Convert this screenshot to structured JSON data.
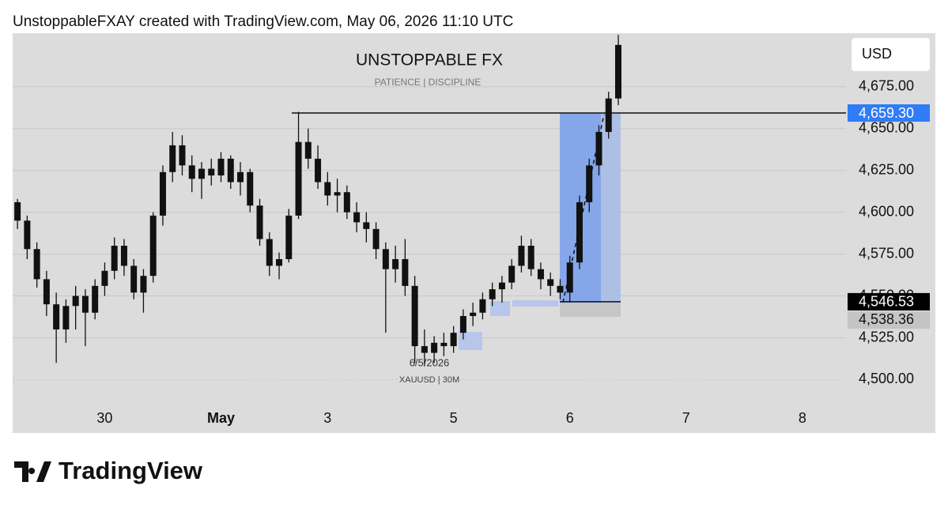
{
  "header": "UnstoppableFXAY created with TradingView.com, May 06, 2026 11:10 UTC",
  "logo": "TradingView",
  "chart_data": {
    "type": "candlestick",
    "title": "UNSTOPPABLE FX",
    "subtitle": "PATIENCE | DISCIPLINE",
    "symbol": "XAUUSD | 30M",
    "date_label": "6/5/2026",
    "currency": "USD",
    "color": "#111111",
    "ylim": [
      4487,
      4707
    ],
    "yticks": [
      {
        "value": 4500,
        "label": "4,500.00"
      },
      {
        "value": 4525,
        "label": "4,525.00"
      },
      {
        "value": 4550,
        "label": "4,550.00"
      },
      {
        "value": 4575,
        "label": "4,575.00"
      },
      {
        "value": 4600,
        "label": "4,600.00"
      },
      {
        "value": 4625,
        "label": "4,625.00"
      },
      {
        "value": 4650,
        "label": "4,650.00"
      },
      {
        "value": 4675,
        "label": "4,675.00"
      }
    ],
    "xlim": [
      -0.5,
      85.5
    ],
    "xticks": [
      {
        "value": 9,
        "label": "30"
      },
      {
        "value": 21,
        "label": "May"
      },
      {
        "value": 32,
        "label": "3"
      },
      {
        "value": 45,
        "label": "5"
      },
      {
        "value": 57,
        "label": "6"
      },
      {
        "value": 69,
        "label": "7"
      },
      {
        "value": 81,
        "label": "8"
      }
    ],
    "grid": true,
    "price_lines": [
      {
        "value": 4659.3,
        "label": "4,659.30",
        "color": "#2f7cf6"
      },
      {
        "value": 4546.53,
        "label": "4,546.53",
        "color": "#000000"
      },
      {
        "value": 4538.36,
        "label": "4,538.36",
        "color": "#c4c4c4"
      }
    ],
    "ohlc": [
      [
        4606,
        4608,
        4590,
        4595
      ],
      [
        4595,
        4598,
        4572,
        4578
      ],
      [
        4578,
        4582,
        4555,
        4560
      ],
      [
        4560,
        4565,
        4538,
        4545
      ],
      [
        4545,
        4552,
        4510,
        4530
      ],
      [
        4530,
        4548,
        4522,
        4544
      ],
      [
        4544,
        4556,
        4530,
        4550
      ],
      [
        4550,
        4554,
        4520,
        4540
      ],
      [
        4540,
        4560,
        4536,
        4556
      ],
      [
        4556,
        4570,
        4550,
        4565
      ],
      [
        4565,
        4585,
        4560,
        4580
      ],
      [
        4580,
        4584,
        4562,
        4568
      ],
      [
        4568,
        4572,
        4548,
        4552
      ],
      [
        4552,
        4566,
        4540,
        4562
      ],
      [
        4562,
        4600,
        4558,
        4598
      ],
      [
        4598,
        4628,
        4592,
        4624
      ],
      [
        4624,
        4648,
        4618,
        4640
      ],
      [
        4640,
        4646,
        4622,
        4628
      ],
      [
        4628,
        4634,
        4612,
        4620
      ],
      [
        4620,
        4630,
        4608,
        4626
      ],
      [
        4626,
        4632,
        4616,
        4622
      ],
      [
        4622,
        4636,
        4618,
        4632
      ],
      [
        4632,
        4634,
        4614,
        4618
      ],
      [
        4618,
        4630,
        4610,
        4624
      ],
      [
        4624,
        4626,
        4600,
        4604
      ],
      [
        4604,
        4608,
        4580,
        4584
      ],
      [
        4584,
        4588,
        4562,
        4568
      ],
      [
        4568,
        4576,
        4560,
        4572
      ],
      [
        4572,
        4602,
        4570,
        4598
      ],
      [
        4598,
        4660,
        4596,
        4642
      ],
      [
        4642,
        4650,
        4626,
        4632
      ],
      [
        4632,
        4640,
        4614,
        4618
      ],
      [
        4618,
        4624,
        4604,
        4610
      ],
      [
        4610,
        4620,
        4600,
        4612
      ],
      [
        4612,
        4616,
        4596,
        4600
      ],
      [
        4600,
        4606,
        4588,
        4594
      ],
      [
        4594,
        4600,
        4582,
        4590
      ],
      [
        4590,
        4594,
        4572,
        4578
      ],
      [
        4578,
        4582,
        4528,
        4566
      ],
      [
        4566,
        4580,
        4558,
        4572
      ],
      [
        4572,
        4584,
        4550,
        4556
      ],
      [
        4556,
        4562,
        4510,
        4520
      ],
      [
        4520,
        4530,
        4508,
        4516
      ],
      [
        4516,
        4526,
        4510,
        4522
      ],
      [
        4522,
        4528,
        4514,
        4520
      ],
      [
        4520,
        4532,
        4516,
        4528
      ],
      [
        4528,
        4542,
        4524,
        4538
      ],
      [
        4538,
        4546,
        4532,
        4540
      ],
      [
        4540,
        4552,
        4536,
        4548
      ],
      [
        4548,
        4558,
        4544,
        4554
      ],
      [
        4554,
        4562,
        4546,
        4558
      ],
      [
        4558,
        4572,
        4554,
        4568
      ],
      [
        4568,
        4586,
        4564,
        4580
      ],
      [
        4580,
        4584,
        4562,
        4566
      ],
      [
        4566,
        4570,
        4554,
        4560
      ],
      [
        4560,
        4564,
        4550,
        4556
      ],
      [
        4556,
        4560,
        4548,
        4552
      ],
      [
        4552,
        4574,
        4546,
        4570
      ],
      [
        4570,
        4610,
        4566,
        4606
      ],
      [
        4606,
        4632,
        4600,
        4628
      ],
      [
        4628,
        4652,
        4622,
        4648
      ],
      [
        4648,
        4672,
        4644,
        4668
      ],
      [
        4668,
        4706,
        4664,
        4700
      ]
    ]
  }
}
